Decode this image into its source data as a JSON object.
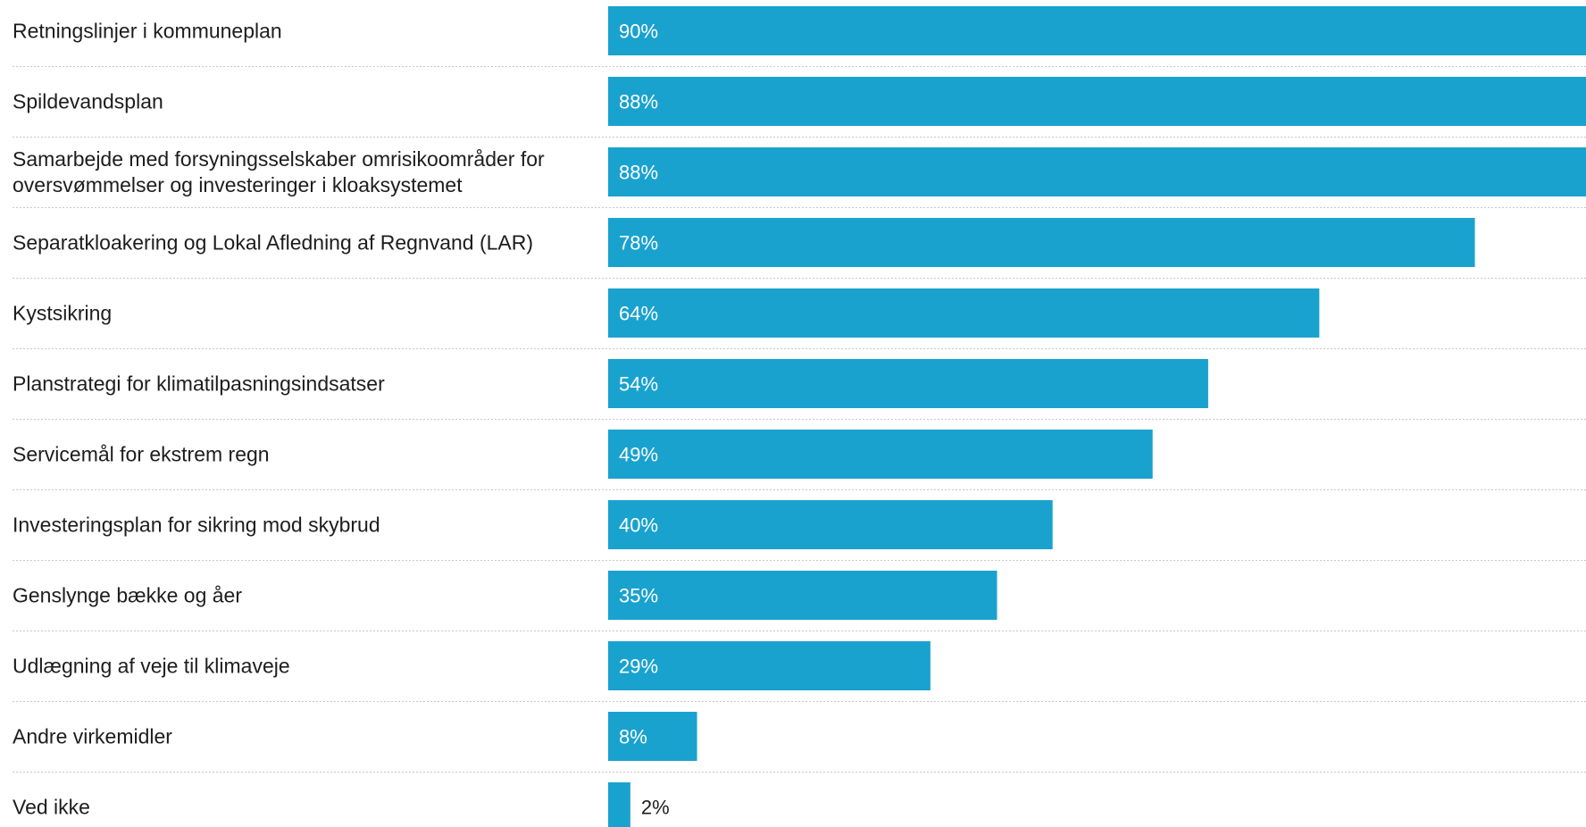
{
  "chart_data": {
    "type": "bar",
    "orientation": "horizontal",
    "categories": [
      [
        "Retningslinjer i kommuneplan"
      ],
      [
        "Spildevandsplan"
      ],
      [
        "Samarbejde med forsyningsselskaber omrisikoområder for",
        "oversvømmelser og investeringer i kloaksystemet"
      ],
      [
        "Separatkloakering og Lokal Afledning af Regnvand (LAR)"
      ],
      [
        "Kystsikring"
      ],
      [
        "Planstrategi for klimatilpasningsindsatser"
      ],
      [
        "Servicemål for ekstrem regn"
      ],
      [
        "Investeringsplan for sikring mod skybrud"
      ],
      [
        "Genslynge bække og åer"
      ],
      [
        "Udlægning af veje til klimaveje"
      ],
      [
        "Andre virkemidler"
      ],
      [
        "Ved ikke"
      ]
    ],
    "values": [
      90,
      88,
      88,
      78,
      64,
      54,
      49,
      40,
      35,
      29,
      8,
      2
    ],
    "value_labels": [
      "90%",
      "88%",
      "88%",
      "78%",
      "64%",
      "54%",
      "49%",
      "40%",
      "35%",
      "29%",
      "8%",
      "2%"
    ],
    "unit": "%",
    "xlim": [
      0,
      88
    ],
    "grid": false,
    "bar_color": "#1aa2cf"
  }
}
